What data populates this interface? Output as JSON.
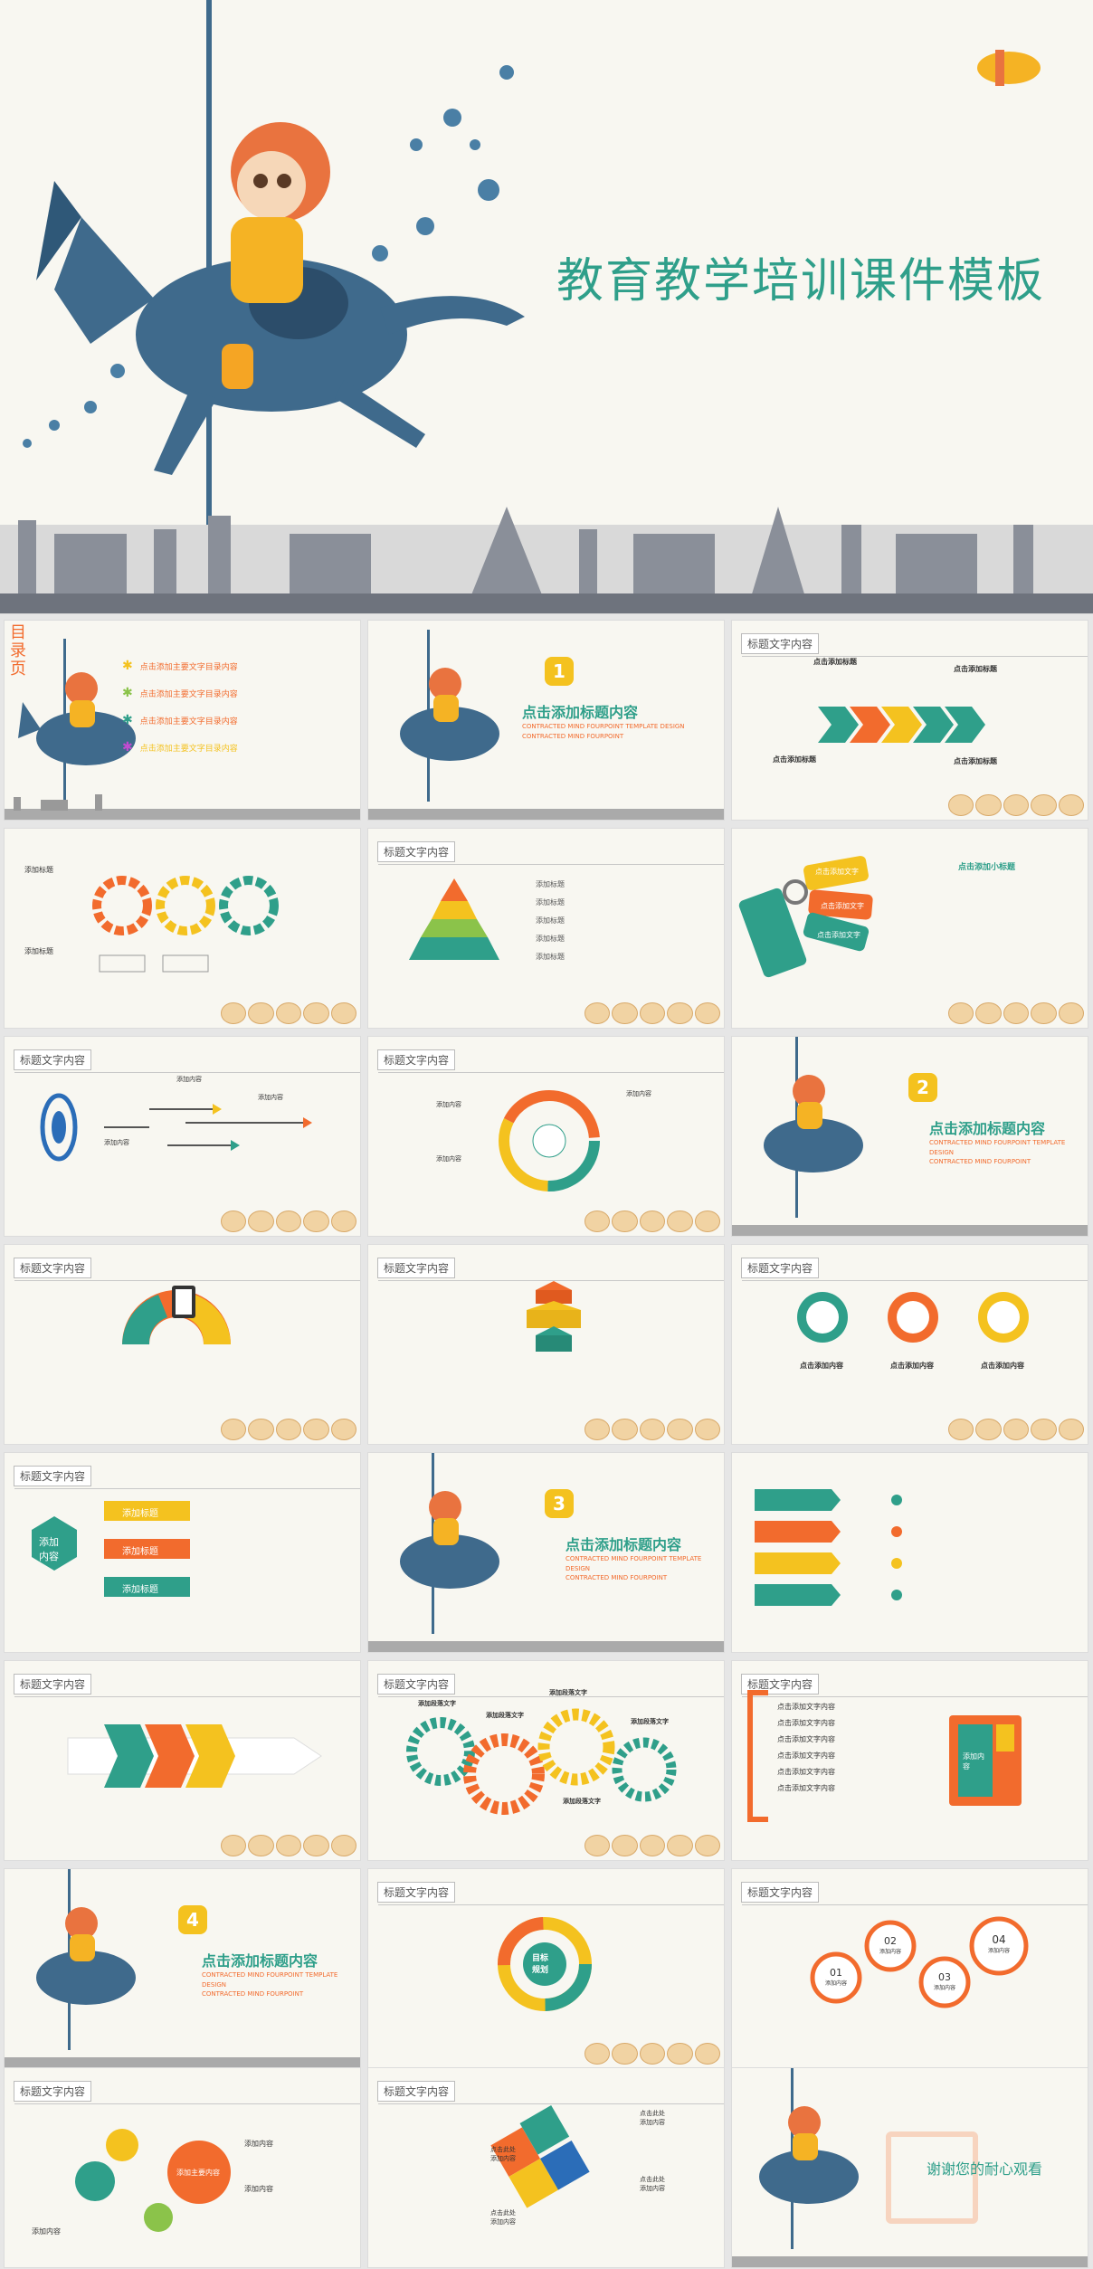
{
  "cover": {
    "title": "教育教学培训课件模板",
    "brand_colors": {
      "teal": "#2f9f8a",
      "orange": "#f26b2d",
      "yellow": "#f4c21f",
      "blue": "#3f6a8c"
    }
  },
  "common": {
    "title_tag": "标题文字内容"
  },
  "toc": {
    "vertical_label": "目录页",
    "items": [
      "点击添加主要文字目录内容",
      "点击添加主要文字目录内容",
      "点击添加主要文字目录内容",
      "点击添加主要文字目录内容"
    ]
  },
  "sections": [
    {
      "number": "1",
      "title": "点击添加标题内容"
    },
    {
      "number": "2",
      "title": "点击添加标题内容"
    },
    {
      "number": "3",
      "title": "点击添加标题内容"
    },
    {
      "number": "4",
      "title": "点击添加标题内容"
    }
  ],
  "section_subtitle_lines": [
    "CONTRACTED MIND FOURPOINT TEMPLATE DESIGN",
    "CONTRACTED MIND FOURPOINT"
  ],
  "s3": {
    "labels": [
      "点击添加标题",
      "点击添加标题",
      "点击添加标题",
      "点击添加标题"
    ]
  },
  "s4": {
    "labels": [
      "添加标题",
      "添加标题"
    ]
  },
  "s5": {
    "labels": [
      "添加标题",
      "添加标题",
      "添加标题",
      "添加标题",
      "添加标题"
    ]
  },
  "s6": {
    "tags": [
      "点击添加文字",
      "点击添加文字",
      "点击添加文字"
    ],
    "heading": "点击添加小标题"
  },
  "s7": {
    "labels": [
      "添加内容",
      "添加内容",
      "添加内容"
    ]
  },
  "s8": {
    "labels": [
      "添加内容",
      "添加内容",
      "添加内容"
    ]
  },
  "s13": {
    "labels": [
      "点击添加内容",
      "点击添加内容",
      "点击添加内容"
    ]
  },
  "s14": {
    "hex": "添加\n内容",
    "labels": [
      "添加标题",
      "添加标题",
      "添加标题"
    ]
  },
  "s17": {
    "labels": [
      "添加段落文字",
      "添加段落文字",
      "添加段落文字",
      "添加段落文字",
      "添加段落文字"
    ]
  },
  "s18": {
    "items": [
      "点击添加文字内容",
      "点击添加文字内容",
      "点击添加文字内容",
      "点击添加文字内容",
      "点击添加文字内容",
      "点击添加文字内容"
    ],
    "card": "添加内容"
  },
  "s20": {
    "center": "目标\n规划"
  },
  "s21": {
    "nodes": [
      {
        "num": "01",
        "label": "添加内容"
      },
      {
        "num": "02",
        "label": "添加内容"
      },
      {
        "num": "03",
        "label": "添加内容"
      },
      {
        "num": "04",
        "label": "添加内容"
      }
    ]
  },
  "s22": {
    "center": "添加主要内容",
    "labels": [
      "添加内容",
      "添加内容",
      "添加内容"
    ]
  },
  "s23": {
    "labels": [
      "点击此处\n添加内容",
      "点击此处\n添加内容",
      "点击此处\n添加内容",
      "点击此处\n添加内容"
    ]
  },
  "ending": {
    "text": "谢谢您的耐心观看"
  }
}
